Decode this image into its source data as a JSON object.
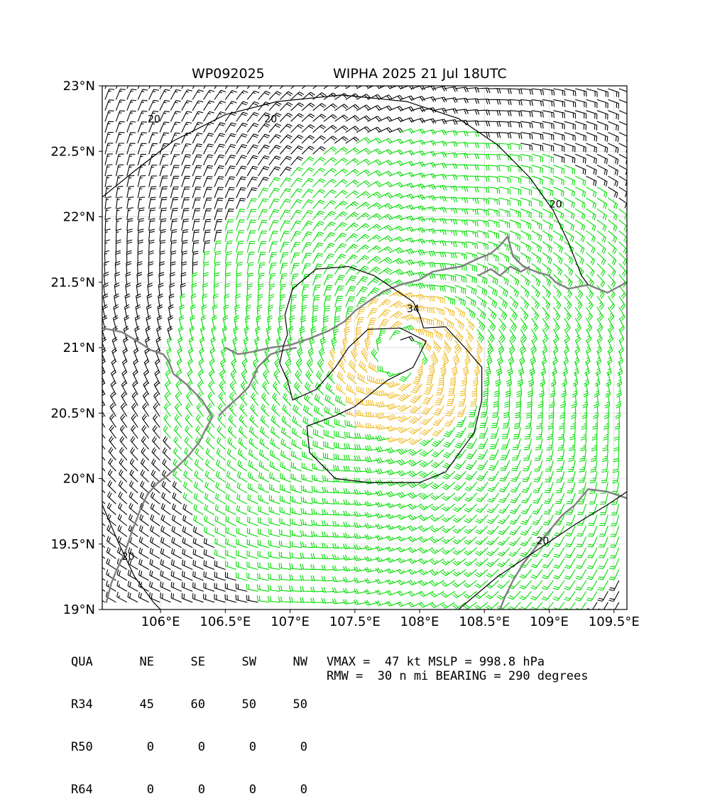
{
  "header": {
    "storm_id": "WP092025",
    "storm_title": "WIPHA 2025 21 Jul 18UTC"
  },
  "map": {
    "lon_range": [
      105.55,
      109.6
    ],
    "lat_range": [
      19.0,
      23.0
    ],
    "lon_ticks": [
      {
        "value": 106.0,
        "label": "106°E"
      },
      {
        "value": 106.5,
        "label": "106.5°E"
      },
      {
        "value": 107.0,
        "label": "107°E"
      },
      {
        "value": 107.5,
        "label": "107.5°E"
      },
      {
        "value": 108.0,
        "label": "108°E"
      },
      {
        "value": 108.5,
        "label": "108.5°E"
      },
      {
        "value": 109.0,
        "label": "109°E"
      },
      {
        "value": 109.5,
        "label": "109.5°E"
      }
    ],
    "lat_ticks": [
      {
        "value": 23.0,
        "label": "23°N"
      },
      {
        "value": 22.5,
        "label": "22.5°N"
      },
      {
        "value": 22.0,
        "label": "22°N"
      },
      {
        "value": 21.5,
        "label": "21.5°N"
      },
      {
        "value": 21.0,
        "label": "21°N"
      },
      {
        "value": 20.5,
        "label": "20.5°N"
      },
      {
        "value": 20.0,
        "label": "20°N"
      },
      {
        "value": 19.5,
        "label": "19.5°N"
      },
      {
        "value": 19.0,
        "label": "19°N"
      }
    ],
    "grid": true,
    "wind_field": {
      "center": {
        "lon": 107.85,
        "lat": 20.95
      },
      "vmax_kt": 47,
      "rmw_nmi": 30,
      "colors": {
        "below_34kt": "#000000",
        "34_to_49kt": "#00dd00",
        "above_34kt_core": "#eebb22"
      }
    },
    "contours": [
      {
        "level": 20,
        "label": "20"
      },
      {
        "level": 34,
        "label": "34"
      }
    ],
    "contour_labels": [
      {
        "text": "20",
        "lon": 105.95,
        "lat": 22.72
      },
      {
        "text": "20",
        "lon": 109.05,
        "lat": 22.07
      },
      {
        "text": "20",
        "lon": 106.85,
        "lat": 22.72
      },
      {
        "text": "20",
        "lon": 105.75,
        "lat": 19.38
      },
      {
        "text": "20",
        "lon": 108.95,
        "lat": 19.5
      },
      {
        "text": "34",
        "lon": 107.95,
        "lat": 21.27
      }
    ],
    "coastline_color": "#808080"
  },
  "radii_table": {
    "header": [
      "QUA",
      "NE",
      "SE",
      "SW",
      "NW"
    ],
    "rows": [
      [
        "R34",
        "45",
        "60",
        "50",
        "50"
      ],
      [
        "R50",
        "0",
        "0",
        "0",
        "0"
      ],
      [
        "R64",
        "0",
        "0",
        "0",
        "0"
      ]
    ]
  },
  "info": {
    "line1": "VMAX =  47 kt MSLP = 998.8 hPa",
    "line2": "RMW =  30 n mi BEARING = 290 degrees"
  }
}
